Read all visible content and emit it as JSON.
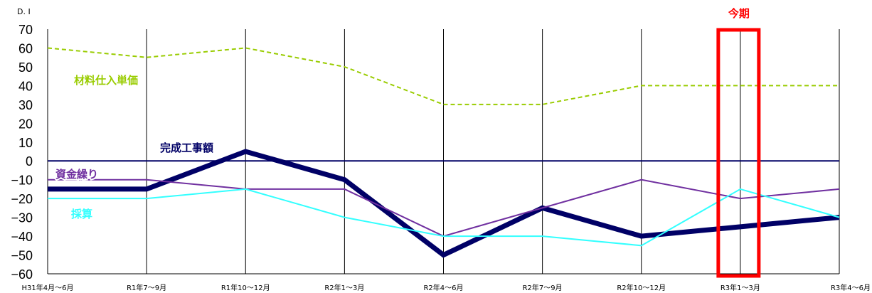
{
  "chart_data": {
    "type": "line",
    "ylabel": "D. I",
    "ylim": [
      -60,
      70
    ],
    "yticks": [
      70,
      60,
      50,
      40,
      30,
      20,
      10,
      0,
      -10,
      -20,
      -30,
      -40,
      -50,
      -60
    ],
    "ytick_labels": [
      "70",
      "60",
      "50",
      "40",
      "30",
      "20",
      "10",
      "0",
      "−10",
      "−20",
      "−30",
      "−40",
      "−50",
      "−60"
    ],
    "categories": [
      "H31年4月～6月",
      "R1年7～9月",
      "R1年10～12月",
      "R2年1～3月",
      "R2年4～6月",
      "R2年7～9月",
      "R2年10～12月",
      "R3年1～3月",
      "R3年4～6月"
    ],
    "grid": "vertical",
    "series": [
      {
        "name": "材料仕入単価",
        "values": [
          60,
          55,
          60,
          50,
          30,
          30,
          40,
          40,
          40
        ],
        "color": "#99cc00",
        "style": "dashed"
      },
      {
        "name": "完成工事額",
        "values": [
          -15,
          -15,
          5,
          -10,
          -50,
          -25,
          -40,
          -35,
          -30
        ],
        "color": "#000066",
        "style": "thick"
      },
      {
        "name": "資金繰り",
        "values": [
          -10,
          -10,
          -15,
          -15,
          -40,
          -25,
          -10,
          -20,
          -15
        ],
        "color": "#7030a0",
        "style": "solid"
      },
      {
        "name": "採算",
        "values": [
          -20,
          -20,
          -15,
          -30,
          -40,
          -40,
          -45,
          -15,
          -30
        ],
        "color": "#33ffff",
        "style": "solid"
      }
    ],
    "highlight": {
      "label": "今期",
      "category_index": 7,
      "color": "#ff0000"
    },
    "zero_line_color": "#000066"
  }
}
